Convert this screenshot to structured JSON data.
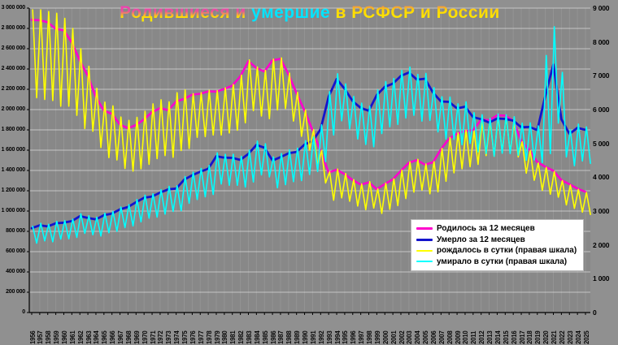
{
  "title": {
    "part1": "Родившиеся и ",
    "part2": "умершие",
    "part3": " в РСФСР и России"
  },
  "colors": {
    "births_12m": "#ff00cc",
    "deaths_12m": "#1414cc",
    "births_daily": "#ffff00",
    "deaths_daily": "#00ffff",
    "plot_bg": "#888888",
    "page_bg": "#909090",
    "grid": "#ffffff",
    "axis": "#000000",
    "legend_bg": "#ffffff",
    "title_yellow": "#ffe400",
    "title_magenta": "#f03ab8",
    "title_cyan": "#00e4ff"
  },
  "chart_data": {
    "type": "line",
    "title": "Родившиеся и умершие в РСФСР и России",
    "grid": "on",
    "legend_position": "bottom-right-inside",
    "x_years": [
      1956,
      1957,
      1958,
      1959,
      1960,
      1961,
      1962,
      1963,
      1964,
      1965,
      1966,
      1967,
      1968,
      1969,
      1970,
      1971,
      1972,
      1973,
      1974,
      1975,
      1976,
      1977,
      1978,
      1979,
      1980,
      1981,
      1982,
      1983,
      1984,
      1985,
      1986,
      1987,
      1988,
      1989,
      1990,
      1991,
      1992,
      1993,
      1994,
      1995,
      1996,
      1997,
      1998,
      1999,
      2000,
      2001,
      2002,
      2003,
      2004,
      2005,
      2006,
      2007,
      2008,
      2009,
      2010,
      2011,
      2012,
      2013,
      2014,
      2015,
      2016,
      2017,
      2018,
      2019,
      2020,
      2021,
      2022,
      2023,
      2024,
      2025
    ],
    "left_axis": {
      "min": 0,
      "max": 3000000,
      "step": 200000,
      "labels_top_to_bottom": [
        "3 000 000",
        "2 800 000",
        "2 600 000",
        "2 400 000",
        "2 200 000",
        "2 000 000",
        "1 800 000",
        "1 600 000",
        "1 400 000",
        "1 200 000",
        "1 000 000",
        "800 000",
        "600 000",
        "400 000",
        "200 000",
        "0"
      ]
    },
    "right_axis": {
      "min": 0,
      "max": 9000,
      "step": 1000,
      "labels_top_to_bottom": [
        "9 000",
        "8 000",
        "7 000",
        "6 000",
        "5 000",
        "4 000",
        "3 000",
        "2 000",
        "1 000",
        "0"
      ]
    },
    "series": [
      {
        "id": "births_12m",
        "label": "Родилось за 12 месяцев",
        "color": "#ff00cc",
        "axis": "left",
        "stroke_width": 2.6,
        "values": [
          2885000,
          2881000,
          2860000,
          2796000,
          2782000,
          2662000,
          2482000,
          2331000,
          2122000,
          1990000,
          1958000,
          1851000,
          1817000,
          1848000,
          1904000,
          1975000,
          2015000,
          1994000,
          2080000,
          2106000,
          2147000,
          2156000,
          2179000,
          2178000,
          2203000,
          2237000,
          2328000,
          2478000,
          2410000,
          2375000,
          2486000,
          2500000,
          2348000,
          2160000,
          1989000,
          1795000,
          1588000,
          1379000,
          1408000,
          1363000,
          1305000,
          1260000,
          1283000,
          1215000,
          1267000,
          1312000,
          1397000,
          1477000,
          1502000,
          1457000,
          1480000,
          1610000,
          1714000,
          1762000,
          1789000,
          1797000,
          1902000,
          1896000,
          1943000,
          1941000,
          1888000,
          1690000,
          1604000,
          1481000,
          1436000,
          1398000,
          1306000,
          1264000,
          1222000,
          1190000
        ]
      },
      {
        "id": "deaths_12m",
        "label": "Умерло за 12 месяцев",
        "color": "#1414cc",
        "axis": "left",
        "stroke_width": 2.8,
        "values": [
          831000,
          859000,
          849000,
          879000,
          886000,
          901000,
          950000,
          932000,
          918000,
          959000,
          975000,
          1017000,
          1040000,
          1087000,
          1131000,
          1143000,
          1182000,
          1214000,
          1222000,
          1310000,
          1353000,
          1388000,
          1417000,
          1540000,
          1526000,
          1524000,
          1504000,
          1564000,
          1651000,
          1625000,
          1498000,
          1531000,
          1569000,
          1583000,
          1656000,
          1690000,
          1807000,
          2129000,
          2301000,
          2204000,
          2082000,
          2016000,
          1989000,
          2144000,
          2225000,
          2255000,
          2332000,
          2366000,
          2295000,
          2304000,
          2167000,
          2080000,
          2076000,
          2011000,
          2029000,
          1926000,
          1906000,
          1872000,
          1912000,
          1908000,
          1891000,
          1826000,
          1829000,
          1798000,
          2139000,
          2445000,
          1905000,
          1760000,
          1820000,
          1800000
        ]
      },
      {
        "id": "births_daily",
        "label": "рождалось в сутки (правая шкала)",
        "color": "#ffff00",
        "axis": "right",
        "stroke_width": 1.6,
        "seasonal_hi": [
          8950,
          8950,
          8900,
          8850,
          8700,
          8400,
          7800,
          7280,
          6630,
          6220,
          6110,
          5780,
          5680,
          5770,
          5950,
          6170,
          6290,
          6230,
          6500,
          6580,
          6470,
          6500,
          6570,
          6560,
          6640,
          6740,
          7020,
          7470,
          7260,
          7160,
          7490,
          7530,
          7080,
          6510,
          5990,
          5410,
          4790,
          4160,
          4240,
          4110,
          3930,
          3800,
          3870,
          3660,
          3820,
          3950,
          4210,
          4450,
          4530,
          4390,
          4460,
          4850,
          5170,
          5310,
          5390,
          5370,
          5680,
          5660,
          5800,
          5800,
          5640,
          5050,
          4790,
          4420,
          4290,
          4170,
          3900,
          3770,
          3640,
          3550
        ],
        "seasonal_lo": [
          6350,
          6300,
          6270,
          6100,
          6100,
          5830,
          5440,
          5360,
          4880,
          4580,
          4510,
          4260,
          4180,
          4250,
          4380,
          4550,
          4640,
          4590,
          4790,
          4850,
          5180,
          5200,
          5250,
          5250,
          5310,
          5390,
          5610,
          5970,
          5810,
          5730,
          5990,
          6030,
          5660,
          5210,
          4800,
          4330,
          3830,
          3320,
          3390,
          3290,
          3150,
          3040,
          3090,
          2930,
          3050,
          3160,
          3370,
          3560,
          3620,
          3510,
          3570,
          3880,
          4130,
          4250,
          4310,
          4380,
          4640,
          4620,
          4740,
          4730,
          4600,
          4120,
          3910,
          3610,
          3500,
          3410,
          3180,
          3080,
          2970,
          2900
        ]
      },
      {
        "id": "deaths_daily",
        "label": "умирало в сутки (правая шкала)",
        "color": "#00ffff",
        "axis": "right",
        "stroke_width": 1.6,
        "seasonal_hi": [
          2550,
          2640,
          2610,
          2700,
          2720,
          2760,
          2920,
          2860,
          2820,
          2940,
          2990,
          3120,
          3190,
          3340,
          3470,
          3510,
          3630,
          3730,
          3750,
          4020,
          4150,
          4260,
          4350,
          4720,
          4680,
          4680,
          4620,
          4800,
          5070,
          4990,
          4600,
          4700,
          4810,
          4860,
          5080,
          5190,
          5550,
          6530,
          7060,
          6760,
          6390,
          6190,
          6100,
          6580,
          6830,
          6920,
          7160,
          7260,
          7040,
          7070,
          6650,
          6380,
          6370,
          6170,
          6230,
          5910,
          5850,
          5740,
          5870,
          5850,
          5790,
          5600,
          5610,
          5520,
          7600,
          8450,
          7100,
          5400,
          5570,
          5490
        ],
        "seasonal_lo": [
          2050,
          2120,
          2090,
          2170,
          2180,
          2220,
          2340,
          2300,
          2260,
          2360,
          2400,
          2510,
          2560,
          2680,
          2790,
          2820,
          2910,
          2990,
          3010,
          3230,
          3340,
          3420,
          3490,
          3800,
          3760,
          3760,
          3710,
          3860,
          4070,
          4010,
          3690,
          3780,
          3870,
          3900,
          4080,
          4170,
          4460,
          5250,
          5670,
          5430,
          5130,
          4970,
          4900,
          5290,
          5490,
          5560,
          5750,
          5830,
          5660,
          5680,
          5340,
          5130,
          5120,
          4960,
          5000,
          4750,
          4700,
          4620,
          4710,
          4700,
          4650,
          4500,
          4510,
          4430,
          4700,
          5600,
          4600,
          4340,
          4480,
          4410
        ]
      }
    ]
  }
}
